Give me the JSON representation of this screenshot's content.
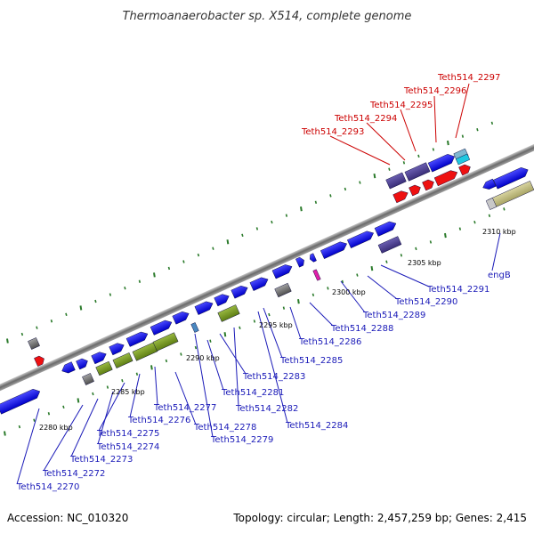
{
  "title": "Thermoanaerobacter sp. X514, complete genome",
  "footer": {
    "accession": "Accession: NC_010320",
    "summary": "Topology: circular; Length: 2,457,259 bp; Genes: 2,415"
  },
  "colors": {
    "cds": "#1010e8",
    "rna": "#ee1111",
    "pseudo": "#4a3e8c",
    "olive": "#7a9c22",
    "grey": "#707070",
    "backbone": "#8a8a8a",
    "tick": "#2a7a2a",
    "label_blue": "#1a1ab8",
    "label_red": "#cc0000"
  },
  "scale_labels": [
    "2280 kbp",
    "2285 kbp",
    "2290 kbp",
    "2295 kbp",
    "2300 kbp",
    "2305 kbp",
    "2310 kbp"
  ],
  "gene_labels": [
    "Teth514_2270",
    "Teth514_2272",
    "Teth514_2273",
    "Teth514_2274",
    "Teth514_2275",
    "Teth514_2276",
    "Teth514_2277",
    "Teth514_2278",
    "Teth514_2279",
    "Teth514_2281",
    "Teth514_2282",
    "Teth514_2283",
    "Teth514_2284",
    "Teth514_2285",
    "Teth514_2286",
    "Teth514_2288",
    "Teth514_2289",
    "Teth514_2290",
    "Teth514_2291",
    "engB",
    "Teth514_2293",
    "Teth514_2294",
    "Teth514_2295",
    "Teth514_2296",
    "Teth514_2297"
  ]
}
